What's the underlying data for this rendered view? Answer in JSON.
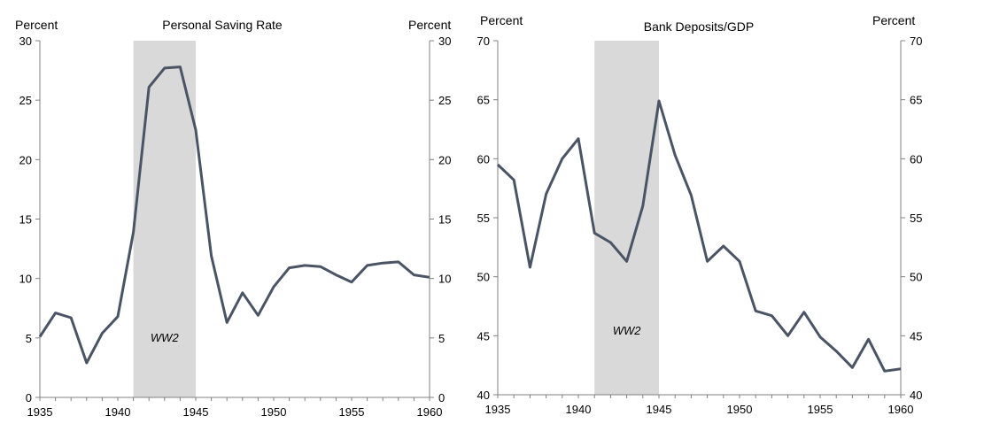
{
  "colors": {
    "line": "#4a5465",
    "shade": "#d9d9d9",
    "axis": "#808080"
  },
  "chart_data": [
    {
      "type": "line",
      "title": "Personal Saving Rate",
      "ylabel_left": "Percent",
      "ylabel_right": "Percent",
      "xlim": [
        1935,
        1960
      ],
      "ylim": [
        0,
        30
      ],
      "x_ticks": [
        1935,
        1940,
        1945,
        1950,
        1955,
        1960
      ],
      "y_ticks": [
        0,
        5,
        10,
        15,
        20,
        25,
        30
      ],
      "shaded_region": {
        "start": 1941,
        "end": 1945,
        "label": "WW2"
      },
      "series": [
        {
          "name": "Personal Saving Rate",
          "x": [
            1935,
            1936,
            1937,
            1938,
            1939,
            1940,
            1941,
            1942,
            1943,
            1944,
            1945,
            1946,
            1947,
            1948,
            1949,
            1950,
            1951,
            1952,
            1953,
            1954,
            1955,
            1956,
            1957,
            1958,
            1959,
            1960
          ],
          "values": [
            5.1,
            7.1,
            6.7,
            2.9,
            5.4,
            6.8,
            13.9,
            26.1,
            27.7,
            27.8,
            22.5,
            11.9,
            6.3,
            8.8,
            6.9,
            9.3,
            10.9,
            11.1,
            11.0,
            10.3,
            9.7,
            11.1,
            11.3,
            11.4,
            10.3,
            10.1
          ]
        }
      ]
    },
    {
      "type": "line",
      "title": "Bank Deposits/GDP",
      "ylabel_left": "Percent",
      "ylabel_right": "Percent",
      "xlim": [
        1935,
        1960
      ],
      "ylim": [
        40,
        70
      ],
      "x_ticks": [
        1935,
        1940,
        1945,
        1950,
        1955,
        1960
      ],
      "y_ticks": [
        40,
        45,
        50,
        55,
        60,
        65,
        70
      ],
      "shaded_region": {
        "start": 1941,
        "end": 1945,
        "label": "WW2"
      },
      "series": [
        {
          "name": "Bank Deposits/GDP",
          "x": [
            1935,
            1936,
            1937,
            1938,
            1939,
            1940,
            1941,
            1942,
            1943,
            1944,
            1945,
            1946,
            1947,
            1948,
            1949,
            1950,
            1951,
            1952,
            1953,
            1954,
            1955,
            1956,
            1957,
            1958,
            1959,
            1960
          ],
          "values": [
            59.5,
            58.2,
            50.8,
            57.0,
            60.0,
            61.7,
            53.7,
            52.9,
            51.3,
            56.0,
            64.9,
            60.3,
            56.9,
            51.3,
            52.6,
            51.3,
            47.1,
            46.7,
            45.0,
            47.0,
            44.9,
            43.7,
            42.3,
            44.7,
            42.0,
            42.2
          ]
        }
      ]
    }
  ]
}
